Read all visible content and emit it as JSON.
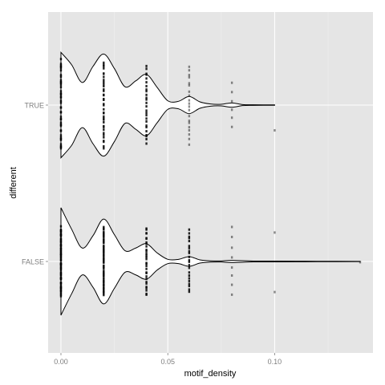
{
  "chart_data": {
    "type": "violin",
    "xlabel": "motif_density",
    "ylabel": "different",
    "xlim": [
      -0.006,
      0.146
    ],
    "x_ticks": [
      0.0,
      0.05,
      0.1
    ],
    "x_tick_labels": [
      "0.00",
      "0.05",
      "0.10"
    ],
    "categories": [
      "FALSE",
      "TRUE"
    ],
    "grid": true,
    "background": "#e5e5e5",
    "series": [
      {
        "category": "TRUE",
        "density_profile": [
          [
            0.0,
            0.98
          ],
          [
            0.005,
            0.75
          ],
          [
            0.01,
            0.42
          ],
          [
            0.015,
            0.72
          ],
          [
            0.02,
            0.95
          ],
          [
            0.025,
            0.68
          ],
          [
            0.03,
            0.34
          ],
          [
            0.035,
            0.45
          ],
          [
            0.04,
            0.57
          ],
          [
            0.045,
            0.33
          ],
          [
            0.05,
            0.08
          ],
          [
            0.055,
            0.07
          ],
          [
            0.06,
            0.16
          ],
          [
            0.065,
            0.06
          ],
          [
            0.07,
            0.02
          ],
          [
            0.075,
            0.015
          ],
          [
            0.08,
            0.04
          ],
          [
            0.085,
            0.01
          ],
          [
            0.09,
            0.005
          ],
          [
            0.1,
            0.003
          ]
        ],
        "points": [
          {
            "x": 0.0,
            "n": 40,
            "spread": 0.83
          },
          {
            "x": 0.02,
            "n": 36,
            "spread": 0.8
          },
          {
            "x": 0.04,
            "n": 26,
            "spread": 0.72
          },
          {
            "x": 0.06,
            "n": 20,
            "spread": 0.72
          },
          {
            "x": 0.08,
            "n": 6,
            "spread": 0.4
          },
          {
            "x": 0.1,
            "n": 1,
            "spread": 0.7
          }
        ]
      },
      {
        "category": "FALSE",
        "density_profile": [
          [
            0.0,
            1.0
          ],
          [
            0.005,
            0.6
          ],
          [
            0.01,
            0.25
          ],
          [
            0.015,
            0.48
          ],
          [
            0.02,
            0.79
          ],
          [
            0.025,
            0.5
          ],
          [
            0.03,
            0.2
          ],
          [
            0.035,
            0.25
          ],
          [
            0.04,
            0.33
          ],
          [
            0.045,
            0.16
          ],
          [
            0.05,
            0.04
          ],
          [
            0.055,
            0.04
          ],
          [
            0.06,
            0.09
          ],
          [
            0.065,
            0.03
          ],
          [
            0.07,
            0.012
          ],
          [
            0.075,
            0.01
          ],
          [
            0.08,
            0.02
          ],
          [
            0.09,
            0.008
          ],
          [
            0.1,
            0.008
          ],
          [
            0.11,
            0.006
          ],
          [
            0.12,
            0.004
          ],
          [
            0.14,
            0.002
          ]
        ],
        "points": [
          {
            "x": 0.0,
            "n": 60,
            "spread": 0.63
          },
          {
            "x": 0.02,
            "n": 60,
            "spread": 0.63
          },
          {
            "x": 0.04,
            "n": 30,
            "spread": 0.63
          },
          {
            "x": 0.06,
            "n": 22,
            "spread": 0.58
          },
          {
            "x": 0.08,
            "n": 8,
            "spread": 0.62
          },
          {
            "x": 0.1,
            "n": 2,
            "spread": 0.55
          },
          {
            "x": 0.14,
            "n": 1,
            "spread": 0.1
          }
        ]
      }
    ]
  }
}
